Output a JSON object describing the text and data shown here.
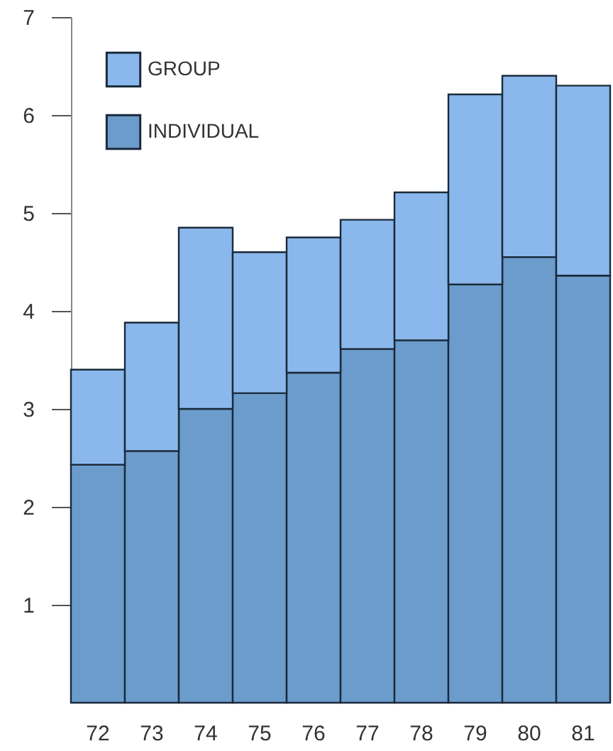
{
  "chart_data": {
    "type": "bar",
    "stacked": true,
    "categories": [
      "72",
      "73",
      "74",
      "75",
      "76",
      "77",
      "78",
      "79",
      "80",
      "81"
    ],
    "series": [
      {
        "name": "INDIVIDUAL",
        "color": "#6c9ccc",
        "values": [
          2.43,
          2.57,
          3.0,
          3.16,
          3.37,
          3.61,
          3.7,
          4.27,
          4.55,
          4.36
        ]
      },
      {
        "name": "GROUP",
        "color": "#8ab8ec",
        "values": [
          0.97,
          1.31,
          1.85,
          1.44,
          1.38,
          1.32,
          1.51,
          1.94,
          1.85,
          1.94
        ]
      }
    ],
    "ylim": [
      0,
      7
    ],
    "yticks": [
      1,
      2,
      3,
      4,
      5,
      6,
      7
    ],
    "grid": false,
    "legend": "top left"
  }
}
